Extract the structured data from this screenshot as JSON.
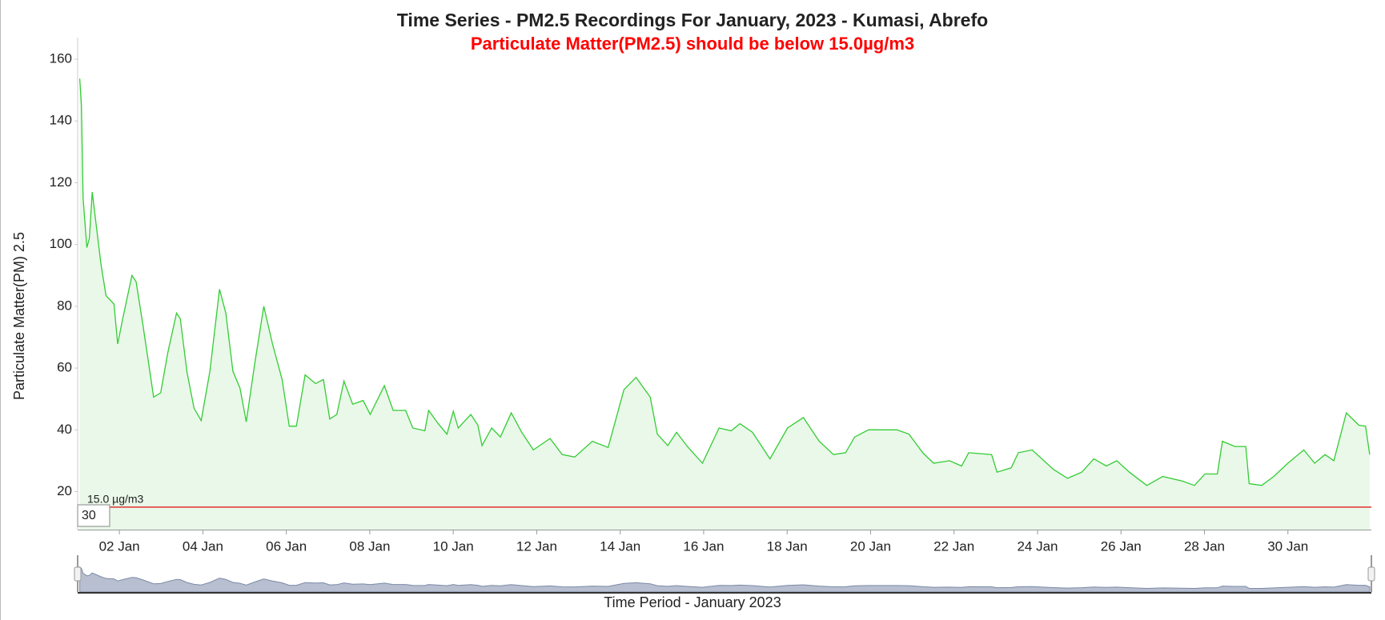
{
  "chart_data": {
    "type": "area",
    "title": "Time Series - PM2.5 Recordings For January, 2023 - Kumasi, Abrefo",
    "subtitle": "Particulate Matter(PM2.5) should be below 15.0µg/m3",
    "subtitle_color": "#ff0000",
    "y_label": "Particulate Matter(PM) 2.5",
    "x_label": "Time Period - January 2023",
    "range_label": "30",
    "color": "#33cc33",
    "fill": "#e9f8e9",
    "threshold": {
      "value": 15,
      "label": "15.0 µg/m3",
      "color": "#e03030"
    },
    "xlim": [
      1,
      32
    ],
    "ylim": [
      7.7,
      167
    ],
    "yticks": [
      20,
      40,
      60,
      80,
      100,
      120,
      140,
      160
    ],
    "xticks": [
      {
        "value": 2,
        "label": "02 Jan"
      },
      {
        "value": 4,
        "label": "04 Jan"
      },
      {
        "value": 6,
        "label": "06 Jan"
      },
      {
        "value": 8,
        "label": "08 Jan"
      },
      {
        "value": 10,
        "label": "10 Jan"
      },
      {
        "value": 12,
        "label": "12 Jan"
      },
      {
        "value": 14,
        "label": "14 Jan"
      },
      {
        "value": 16,
        "label": "16 Jan"
      },
      {
        "value": 18,
        "label": "18 Jan"
      },
      {
        "value": 20,
        "label": "20 Jan"
      },
      {
        "value": 22,
        "label": "22 Jan"
      },
      {
        "value": 24,
        "label": "24 Jan"
      },
      {
        "value": 26,
        "label": "26 Jan"
      },
      {
        "value": 28,
        "label": "28 Jan"
      },
      {
        "value": 30,
        "label": "30 Jan"
      }
    ],
    "x": [
      1.05,
      1.09,
      1.13,
      1.22,
      1.28,
      1.35,
      1.43,
      1.56,
      1.68,
      1.87,
      1.96,
      2.08,
      2.3,
      2.4,
      2.57,
      2.82,
      2.99,
      3.16,
      3.37,
      3.46,
      3.62,
      3.79,
      3.96,
      4.17,
      4.4,
      4.55,
      4.72,
      4.89,
      5.04,
      5.25,
      5.46,
      5.67,
      5.9,
      6.07,
      6.24,
      6.45,
      6.7,
      6.89,
      7.04,
      7.21,
      7.38,
      7.59,
      7.84,
      8.01,
      8.35,
      8.56,
      8.86,
      9.03,
      9.32,
      9.41,
      9.64,
      9.85,
      10.0,
      10.12,
      10.42,
      10.59,
      10.69,
      10.92,
      11.13,
      11.39,
      11.64,
      11.92,
      12.32,
      12.61,
      12.91,
      13.33,
      13.71,
      14.09,
      14.38,
      14.72,
      14.89,
      15.14,
      15.35,
      15.61,
      15.97,
      16.37,
      16.66,
      16.87,
      17.17,
      17.59,
      18.01,
      18.39,
      18.77,
      19.11,
      19.4,
      19.62,
      19.95,
      20.63,
      20.92,
      21.25,
      21.51,
      21.89,
      22.18,
      22.35,
      22.9,
      23.03,
      23.37,
      23.54,
      23.87,
      24.38,
      24.72,
      25.06,
      25.35,
      25.65,
      25.9,
      26.2,
      26.62,
      27.0,
      27.47,
      27.76,
      28.01,
      28.31,
      28.43,
      28.73,
      28.99,
      29.07,
      29.37,
      29.66,
      30.0,
      30.38,
      30.64,
      30.89,
      31.1,
      31.4,
      31.7,
      31.86,
      31.96
    ],
    "values": [
      153.7,
      145,
      115,
      99,
      102,
      117,
      108,
      93.5,
      83.5,
      80.7,
      67.8,
      76,
      90,
      88,
      73.5,
      50.6,
      52,
      65,
      77.8,
      76,
      58.6,
      47,
      43,
      59,
      85.5,
      77.8,
      59,
      53.5,
      42.6,
      62,
      80,
      67.8,
      56.3,
      41.2,
      41.2,
      57.8,
      55,
      56.3,
      43.5,
      45,
      55.8,
      48.3,
      49.5,
      45,
      54.3,
      46.3,
      46.3,
      40.6,
      39.7,
      46.3,
      42,
      38.6,
      46,
      40.6,
      45,
      41.5,
      34.9,
      40.6,
      37.7,
      45.5,
      39.2,
      33.5,
      37.2,
      32,
      31.2,
      36.3,
      34.3,
      53,
      57,
      50.6,
      38.6,
      34.9,
      39.2,
      34.6,
      29.2,
      40.6,
      39.7,
      42,
      39.2,
      30.6,
      40.6,
      44,
      36.3,
      32,
      32.6,
      37.7,
      40,
      40,
      38.6,
      32.6,
      29.2,
      30,
      28.3,
      32.6,
      32,
      26.3,
      27.7,
      32.6,
      33.5,
      27.2,
      24.3,
      26.3,
      30.6,
      28.3,
      30,
      26.3,
      22,
      24.9,
      23.4,
      22,
      25.7,
      25.7,
      36.3,
      34.6,
      34.6,
      22.6,
      22,
      24.9,
      29.2,
      33.5,
      29.2,
      32,
      30,
      45.5,
      41.5,
      41.2,
      32
    ]
  }
}
